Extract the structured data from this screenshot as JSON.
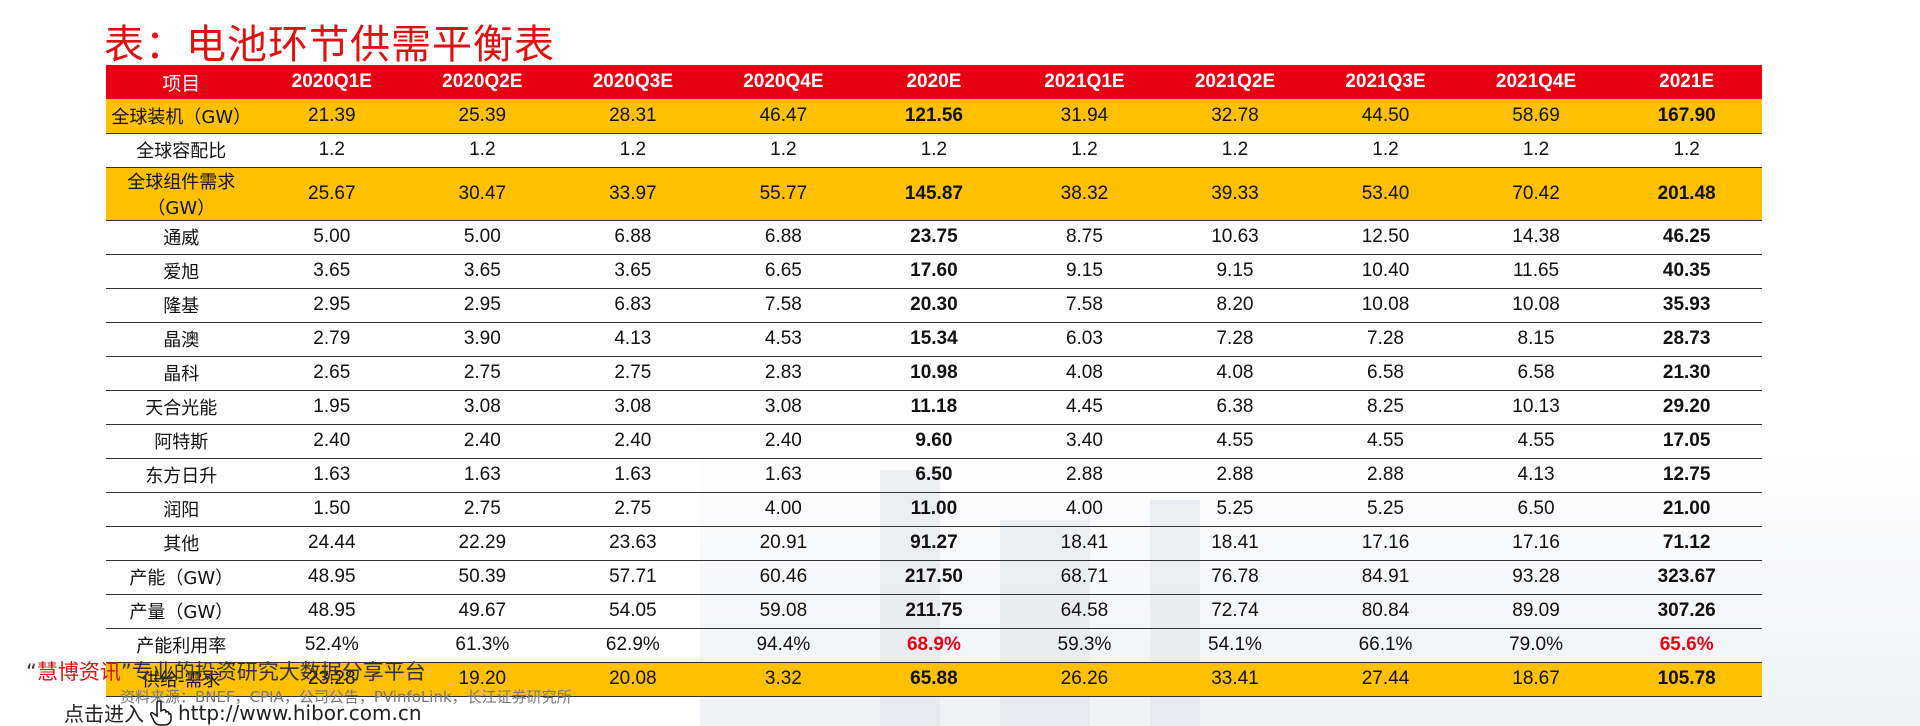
{
  "title": "表：电池环节供需平衡表",
  "table": {
    "header": [
      "项目",
      "2020Q1E",
      "2020Q2E",
      "2020Q3E",
      "2020Q4E",
      "2020E",
      "2021Q1E",
      "2021Q2E",
      "2021Q3E",
      "2021Q4E",
      "2021E"
    ],
    "rows": [
      {
        "label": "全球装机（GW）",
        "values": [
          "21.39",
          "25.39",
          "28.31",
          "46.47",
          "121.56",
          "31.94",
          "32.78",
          "44.50",
          "58.69",
          "167.90"
        ]
      },
      {
        "label": "全球容配比",
        "values": [
          "1.2",
          "1.2",
          "1.2",
          "1.2",
          "1.2",
          "1.2",
          "1.2",
          "1.2",
          "1.2",
          "1.2"
        ]
      },
      {
        "label": "全球组件需求（GW）",
        "values": [
          "25.67",
          "30.47",
          "33.97",
          "55.77",
          "145.87",
          "38.32",
          "39.33",
          "53.40",
          "70.42",
          "201.48"
        ]
      },
      {
        "label": "通威",
        "values": [
          "5.00",
          "5.00",
          "6.88",
          "6.88",
          "23.75",
          "8.75",
          "10.63",
          "12.50",
          "14.38",
          "46.25"
        ]
      },
      {
        "label": "爱旭",
        "values": [
          "3.65",
          "3.65",
          "3.65",
          "6.65",
          "17.60",
          "9.15",
          "9.15",
          "10.40",
          "11.65",
          "40.35"
        ]
      },
      {
        "label": "隆基",
        "values": [
          "2.95",
          "2.95",
          "6.83",
          "7.58",
          "20.30",
          "7.58",
          "8.20",
          "10.08",
          "10.08",
          "35.93"
        ]
      },
      {
        "label": "晶澳",
        "values": [
          "2.79",
          "3.90",
          "4.13",
          "4.53",
          "15.34",
          "6.03",
          "7.28",
          "7.28",
          "8.15",
          "28.73"
        ]
      },
      {
        "label": "晶科",
        "values": [
          "2.65",
          "2.75",
          "2.75",
          "2.83",
          "10.98",
          "4.08",
          "4.08",
          "6.58",
          "6.58",
          "21.30"
        ]
      },
      {
        "label": "天合光能",
        "values": [
          "1.95",
          "3.08",
          "3.08",
          "3.08",
          "11.18",
          "4.45",
          "6.38",
          "8.25",
          "10.13",
          "29.20"
        ]
      },
      {
        "label": "阿特斯",
        "values": [
          "2.40",
          "2.40",
          "2.40",
          "2.40",
          "9.60",
          "3.40",
          "4.55",
          "4.55",
          "4.55",
          "17.05"
        ]
      },
      {
        "label": "东方日升",
        "values": [
          "1.63",
          "1.63",
          "1.63",
          "1.63",
          "6.50",
          "2.88",
          "2.88",
          "2.88",
          "4.13",
          "12.75"
        ]
      },
      {
        "label": "润阳",
        "values": [
          "1.50",
          "2.75",
          "2.75",
          "4.00",
          "11.00",
          "4.00",
          "5.25",
          "5.25",
          "6.50",
          "21.00"
        ]
      },
      {
        "label": "其他",
        "values": [
          "24.44",
          "22.29",
          "23.63",
          "20.91",
          "91.27",
          "18.41",
          "18.41",
          "17.16",
          "17.16",
          "71.12"
        ]
      },
      {
        "label": "产能（GW）",
        "values": [
          "48.95",
          "50.39",
          "57.71",
          "60.46",
          "217.50",
          "68.71",
          "76.78",
          "84.91",
          "93.28",
          "323.67"
        ]
      },
      {
        "label": "产量（GW）",
        "values": [
          "48.95",
          "49.67",
          "54.05",
          "59.08",
          "211.75",
          "64.58",
          "72.74",
          "80.84",
          "89.09",
          "307.26"
        ]
      },
      {
        "label": "产能利用率",
        "values": [
          "52.4%",
          "61.3%",
          "62.9%",
          "94.4%",
          "68.9%",
          "59.3%",
          "54.1%",
          "66.1%",
          "79.0%",
          "65.6%"
        ]
      },
      {
        "label": "供给-需求",
        "values": [
          "23.28",
          "19.20",
          "20.08",
          "3.32",
          "65.88",
          "26.26",
          "33.41",
          "27.44",
          "18.67",
          "105.78"
        ]
      }
    ]
  },
  "source": "资料来源：BNEF，CPIA，公司公告，PVinfoLink，长江证券研究所",
  "watermark": {
    "open_quote": "“",
    "brand": "慧博资讯",
    "close_quote": "”",
    "slogan": "专业的投资研究大数据分享平台",
    "enter_text": "点击进入",
    "url": "http://www.hibor.com.cn"
  },
  "colors": {
    "header_red": "#e60012",
    "highlight_yellow": "#ffc000",
    "title_red": "#e01010"
  }
}
